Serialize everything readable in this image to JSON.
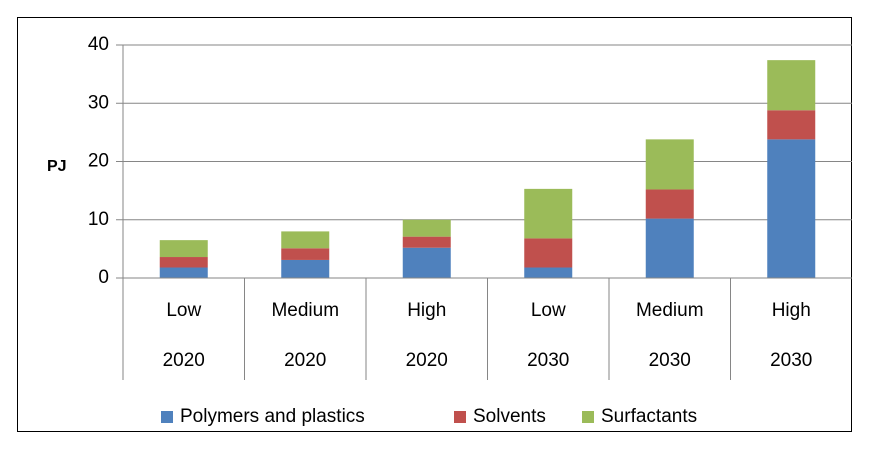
{
  "chart_data": {
    "type": "bar",
    "stacked": true,
    "categories": [
      "Low",
      "Medium",
      "High",
      "Low",
      "Medium",
      "High"
    ],
    "category_groups": [
      "2020",
      "2020",
      "2020",
      "2030",
      "2030",
      "2030"
    ],
    "series": [
      {
        "name": "Polymers and plastics",
        "color": "#4f81bd",
        "values": [
          1.8,
          3.1,
          5.2,
          1.8,
          10.2,
          23.8
        ]
      },
      {
        "name": "Solvents",
        "color": "#c0504d",
        "values": [
          1.8,
          2.0,
          1.9,
          5.0,
          5.0,
          5.0
        ]
      },
      {
        "name": "Surfactants",
        "color": "#9bbb59",
        "values": [
          2.9,
          2.9,
          2.9,
          8.5,
          8.6,
          8.6
        ]
      }
    ],
    "ylabel": "PJ",
    "ylim": [
      0,
      40
    ],
    "yticks": [
      "0",
      "10",
      "20",
      "30",
      "40"
    ],
    "grid": true,
    "legend": "bottom"
  }
}
